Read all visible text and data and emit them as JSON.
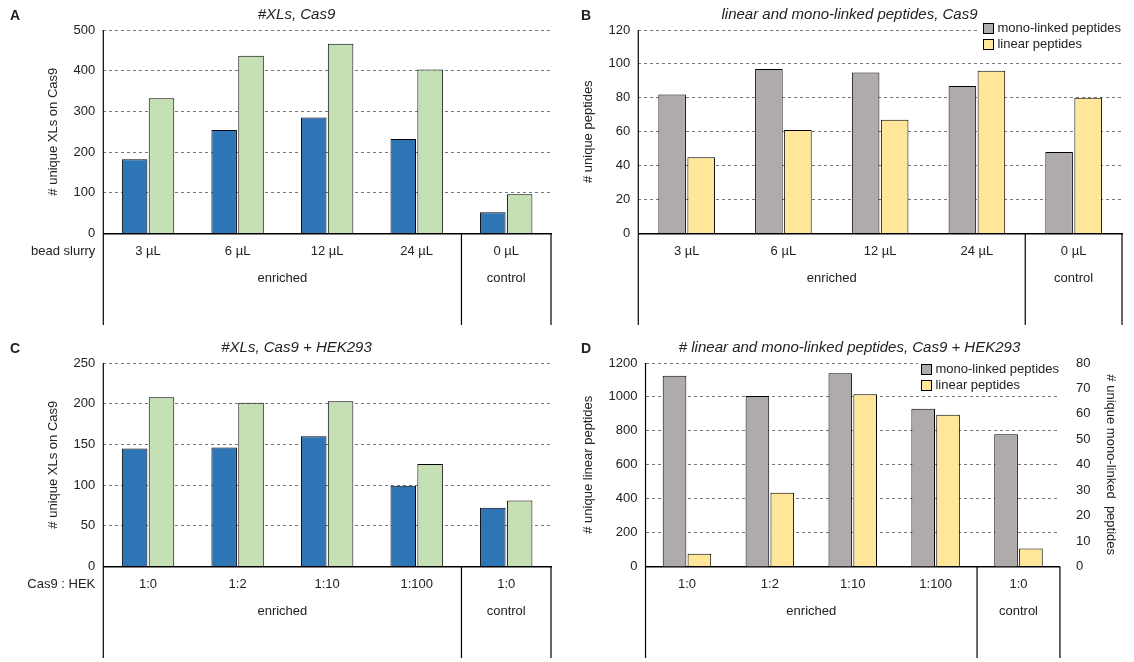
{
  "chart_data": [
    {
      "type": "bar",
      "subtitle": "A",
      "title": "#XLs, Cas9",
      "ylabel": "# unique XLs on Cas9",
      "xlabel": "bead slurry",
      "categories": [
        "3 µL",
        "6 µL",
        "12 µL",
        "24 µL",
        "0 µL"
      ],
      "series": [
        {
          "color": "#2e75b6",
          "values": [
            182,
            254,
            285,
            232,
            52
          ]
        },
        {
          "color": "#c5e0b4",
          "values": [
            332,
            437,
            466,
            403,
            96
          ]
        }
      ],
      "ylim": [
        0,
        500
      ],
      "yticks": [
        0,
        100,
        200,
        300,
        400,
        500
      ],
      "grid": "y",
      "annotations": [
        "enriched",
        "control"
      ]
    },
    {
      "type": "bar",
      "subtitle": "B",
      "title": "linear and mono-linked peptides, Cas9",
      "ylabel": "# unique peptides",
      "categories": [
        "3 µL",
        "6 µL",
        "12 µL",
        "24 µL",
        "0 µL"
      ],
      "series": [
        {
          "name": "mono-linked peptides",
          "color": "#afabab",
          "values": [
            82,
            97,
            95,
            87,
            48
          ]
        },
        {
          "name": "linear peptides",
          "color": "#ffe699",
          "values": [
            45,
            61,
            67,
            96,
            80
          ]
        }
      ],
      "ylim": [
        0,
        120
      ],
      "yticks": [
        0,
        20,
        40,
        60,
        80,
        100,
        120
      ],
      "grid": "y",
      "legend": "top right",
      "annotations": [
        "enriched",
        "control"
      ]
    },
    {
      "type": "bar",
      "subtitle": "C",
      "title": "#XLs, Cas9 + HEK293",
      "ylabel": "# unique XLs on Cas9",
      "xlabel": "Cas9 : HEK",
      "categories": [
        "1:0",
        "1:2",
        "1:10",
        "1:100",
        "1:0"
      ],
      "series": [
        {
          "color": "#2e75b6",
          "values": [
            145,
            146,
            160,
            99,
            72
          ]
        },
        {
          "color": "#c5e0b4",
          "values": [
            208,
            201,
            203,
            126,
            81
          ]
        }
      ],
      "ylim": [
        0,
        250
      ],
      "yticks": [
        0,
        50,
        100,
        150,
        200,
        250
      ],
      "grid": "y",
      "annotations": [
        "enriched",
        "control"
      ]
    },
    {
      "type": "bar",
      "subtitle": "D",
      "title": "# linear and mono-linked peptides, Cas9 + HEK293",
      "ylabel": "# unique linear peptides",
      "y2label": "# unique mono-linked  peptides",
      "categories": [
        "1:0",
        "1:2",
        "1:10",
        "1:100",
        "1:0"
      ],
      "series": [
        {
          "name": "mono-linked peptides",
          "color": "#afabab",
          "axis": "y2",
          "values": [
            75,
            67,
            76,
            62,
            52
          ]
        },
        {
          "name": "linear peptides",
          "color": "#ffe699",
          "values": [
            75,
            435,
            1015,
            895,
            105
          ]
        }
      ],
      "ylim": [
        0,
        1200
      ],
      "yticks": [
        0,
        200,
        400,
        600,
        800,
        1000,
        1200
      ],
      "y2lim": [
        0,
        80
      ],
      "y2ticks": [
        0,
        10,
        20,
        30,
        40,
        50,
        60,
        70,
        80
      ],
      "grid": "y",
      "legend": "top right",
      "annotations": [
        "enriched",
        "control"
      ]
    }
  ]
}
